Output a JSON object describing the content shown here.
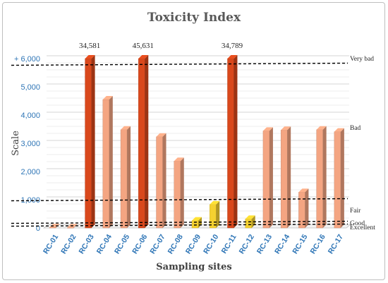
{
  "chart_data": {
    "type": "bar",
    "title": "Toxicity Index",
    "xlabel": "Sampling sites",
    "ylabel": "Scale",
    "ylim": [
      0,
      6000
    ],
    "yticks": [
      0,
      1000,
      2000,
      3000,
      4000,
      5000,
      6000
    ],
    "ytick_labels": [
      "0",
      "1,000",
      "2,000",
      "3,000",
      "4,000",
      "5,000",
      "+ 6,000"
    ],
    "grid": true,
    "categories": [
      "RC-01",
      "RC-02",
      "RC-03",
      "RC-04",
      "RC-05",
      "RC-06",
      "RC-07",
      "RC-08",
      "RC-09",
      "RC-10",
      "RC-11",
      "RC-12",
      "RC-13",
      "RC-14",
      "RC-15",
      "RC-16",
      "RC-17"
    ],
    "values": [
      20,
      15,
      34581,
      4550,
      3480,
      45631,
      3230,
      2370,
      260,
      830,
      34789,
      320,
      3440,
      3470,
      1270,
      3480,
      3410
    ],
    "data_labels": [
      "",
      "",
      "34,581",
      "",
      "",
      "45,631",
      "",
      "",
      "",
      "",
      "34,789",
      "",
      "",
      "",
      "",
      "",
      ""
    ],
    "bar_colors": [
      "#f4a582",
      "#f4a582",
      "#d9481c",
      "#f4a582",
      "#f4a582",
      "#d9481c",
      "#f4a582",
      "#f4a582",
      "#f5d130",
      "#f5d130",
      "#d9481c",
      "#f5d130",
      "#f4a582",
      "#f4a582",
      "#f4a582",
      "#f4a582",
      "#f4a582"
    ],
    "thresholds": [
      {
        "label": "Very bad",
        "value": 5800
      },
      {
        "label": "Fair",
        "value": 1000
      },
      {
        "label": "Good",
        "value": 200
      },
      {
        "label": "Excellent",
        "value": 100
      }
    ],
    "zone_labels": [
      {
        "label": "Very bad",
        "value": 6100
      },
      {
        "label": "Bad",
        "value": 3550
      },
      {
        "label": "Fair",
        "value": 620
      },
      {
        "label": "Good",
        "value": 170
      },
      {
        "label": "Excellent",
        "value": 20
      }
    ],
    "axis_text_color": "#2e75b6",
    "grid_color": "#d9d9d9"
  }
}
